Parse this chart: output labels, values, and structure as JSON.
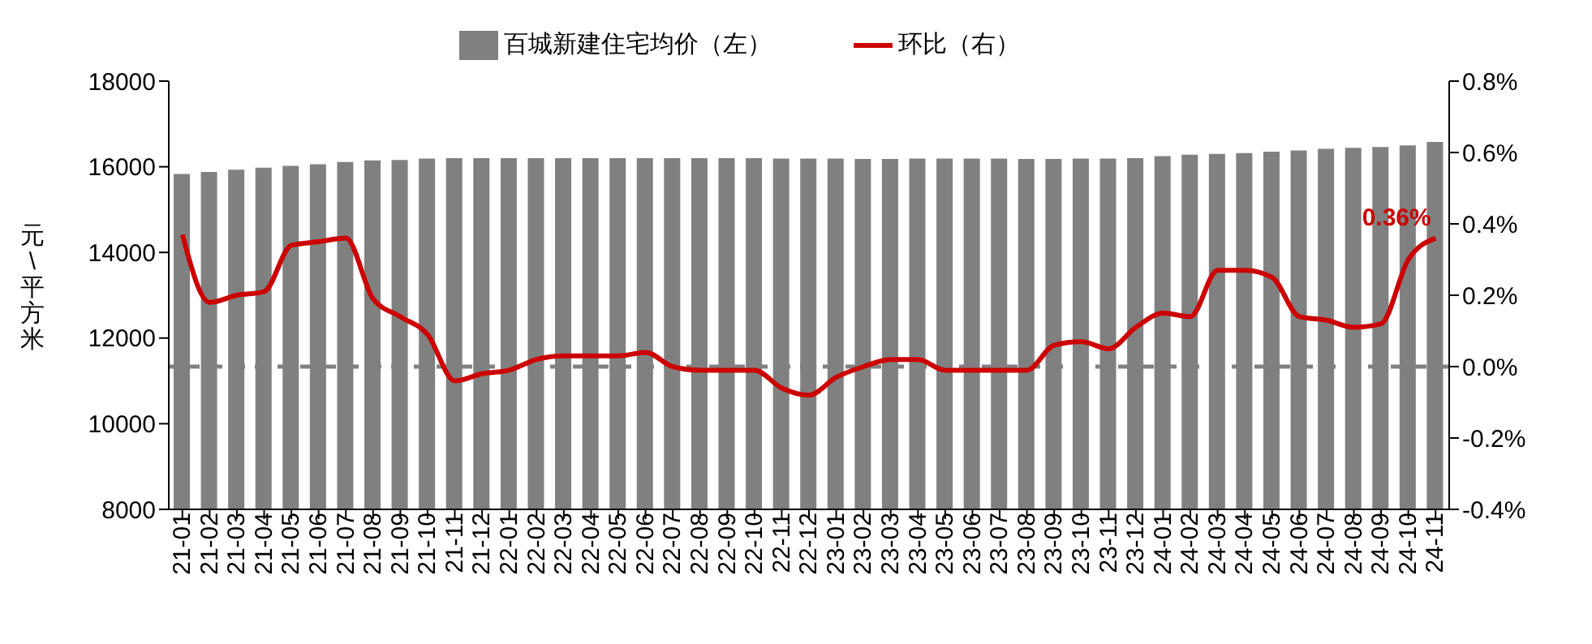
{
  "chart_data": {
    "type": "bar",
    "categories": [
      "21-01",
      "21-02",
      "21-03",
      "21-04",
      "21-05",
      "21-06",
      "21-07",
      "21-08",
      "21-09",
      "21-10",
      "21-11",
      "21-12",
      "22-01",
      "22-02",
      "22-03",
      "22-04",
      "22-05",
      "22-06",
      "22-07",
      "22-08",
      "22-09",
      "22-10",
      "22-11",
      "22-12",
      "23-01",
      "23-02",
      "23-03",
      "23-04",
      "23-05",
      "23-06",
      "23-07",
      "23-08",
      "23-09",
      "23-10",
      "23-11",
      "23-12",
      "24-01",
      "24-02",
      "24-03",
      "24-04",
      "24-05",
      "24-06",
      "24-07",
      "24-08",
      "24-09",
      "24-10",
      "24-11"
    ],
    "series": [
      {
        "name": "百城新建住宅均价（左）",
        "color": "#808080",
        "values": [
          15830,
          15880,
          15930,
          15980,
          16020,
          16060,
          16110,
          16150,
          16160,
          16190,
          16200,
          16200,
          16200,
          16200,
          16200,
          16200,
          16200,
          16200,
          16200,
          16200,
          16200,
          16200,
          16190,
          16190,
          16190,
          16180,
          16180,
          16190,
          16190,
          16190,
          16190,
          16180,
          16180,
          16190,
          16190,
          16200,
          16250,
          16280,
          16300,
          16320,
          16350,
          16380,
          16420,
          16440,
          16460,
          16500,
          16580
        ]
      },
      {
        "name": "环比（右）",
        "type": "line",
        "axis": "y2",
        "color": "#cc0000",
        "values": [
          0.37,
          0.18,
          0.2,
          0.21,
          0.34,
          0.35,
          0.36,
          0.19,
          0.14,
          0.09,
          -0.04,
          -0.02,
          -0.01,
          0.02,
          0.03,
          0.03,
          0.03,
          0.04,
          0.0,
          -0.01,
          -0.01,
          -0.01,
          -0.06,
          -0.08,
          -0.03,
          0.0,
          0.02,
          0.02,
          -0.01,
          -0.01,
          -0.01,
          -0.01,
          0.06,
          0.07,
          0.05,
          0.11,
          0.15,
          0.14,
          0.27,
          0.27,
          0.25,
          0.14,
          0.13,
          0.11,
          0.12,
          0.3,
          0.36
        ],
        "value_labels": [
          null,
          null,
          null,
          null,
          null,
          null,
          null,
          null,
          null,
          null,
          null,
          null,
          null,
          null,
          null,
          null,
          null,
          null,
          null,
          null,
          null,
          null,
          null,
          null,
          null,
          null,
          null,
          null,
          null,
          null,
          null,
          null,
          null,
          null,
          null,
          null,
          null,
          null,
          null,
          null,
          null,
          null,
          null,
          null,
          null,
          null,
          "0.36%"
        ]
      }
    ],
    "ylabel": "元\\平方米",
    "ylim": [
      8000,
      18000
    ],
    "yticks": [
      8000,
      10000,
      12000,
      14000,
      16000,
      18000
    ],
    "y2lim": [
      -0.4,
      0.8
    ],
    "y2ticks": [
      {
        "value": -0.4,
        "label": "-0.4%"
      },
      {
        "value": -0.2,
        "label": "-0.2%"
      },
      {
        "value": 0,
        "label": "0.0%"
      },
      {
        "value": 0.2,
        "label": "0.2%"
      },
      {
        "value": 0.4,
        "label": "0.4%"
      },
      {
        "value": 0.6,
        "label": "0.6%"
      },
      {
        "value": 0.8,
        "label": "0.8%"
      }
    ],
    "ref_lines": [
      {
        "axis": "y2",
        "value": 0,
        "color": "#808080",
        "line_style": "dashed"
      }
    ],
    "grid": false,
    "legend": "top",
    "marker": "none",
    "line_style": "solid"
  }
}
